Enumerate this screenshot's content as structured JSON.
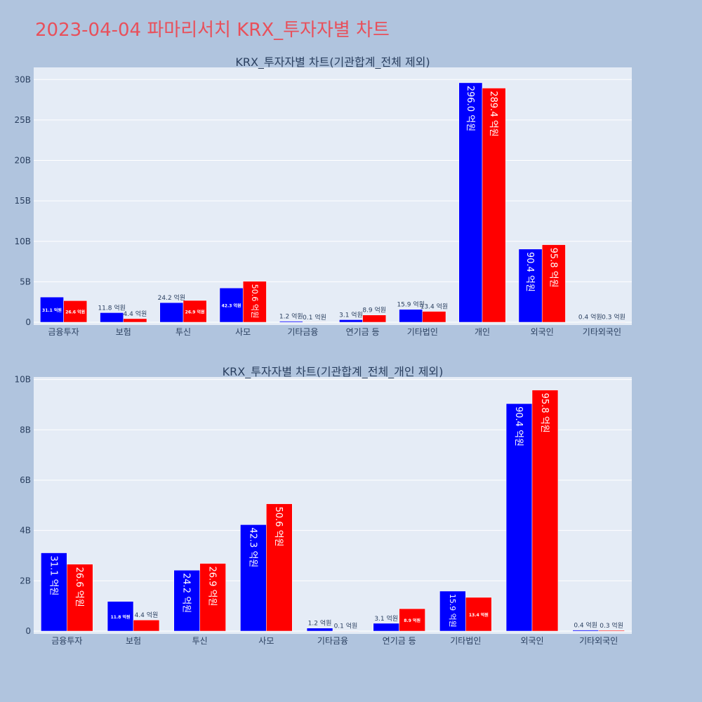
{
  "page": {
    "title": "2023-04-04 파마리서치 KRX_투자자별 차트"
  },
  "colors": {
    "buy": "#0000ff",
    "sell": "#ff0000",
    "background": "#b0c4de",
    "plot_bg": "#e5ecf6",
    "grid": "#ffffff",
    "text": "#2a3f5f"
  },
  "chart_data": [
    {
      "type": "bar",
      "title": "KRX_투자자별 차트(기관합계_전체 제외)",
      "categories": [
        "금융투자",
        "보험",
        "투신",
        "사모",
        "기타금융",
        "연기금 등",
        "기타법인",
        "개인",
        "외국인",
        "기타외국인"
      ],
      "series": [
        {
          "color": "#0000ff",
          "values": [
            3.11,
            1.18,
            2.42,
            4.23,
            0.12,
            0.31,
            1.59,
            29.6,
            9.04,
            0.04
          ],
          "labels": [
            "31.1 억원",
            "11.8 억원",
            "24.2 억원",
            "42.3 억원",
            "1.2 억원",
            "3.1 억원",
            "15.9 억원",
            "296.0 억원",
            "90.4 억원",
            "0.4 억원"
          ]
        },
        {
          "color": "#ff0000",
          "values": [
            2.66,
            0.44,
            2.69,
            5.06,
            0.01,
            0.89,
            1.34,
            28.94,
            9.58,
            0.03
          ],
          "labels": [
            "26.6 억원",
            "4.4 억원",
            "26.9 억원",
            "50.6 억원",
            "0.1 억원",
            "8.9 억원",
            "13.4 억원",
            "289.4 억원",
            "95.8 억원",
            "0.3 억원"
          ]
        }
      ],
      "ylim": [
        0,
        31.5
      ],
      "yticks": [
        0,
        5,
        10,
        15,
        20,
        25,
        30
      ],
      "ytick_labels": [
        "0",
        "5B",
        "10B",
        "15B",
        "20B",
        "25B",
        "30B"
      ],
      "grid": true
    },
    {
      "type": "bar",
      "title": "KRX_투자자별 차트(기관합계_전체_개인 제외)",
      "categories": [
        "금융투자",
        "보험",
        "투신",
        "사모",
        "기타금융",
        "연기금 등",
        "기타법인",
        "외국인",
        "기타외국인"
      ],
      "series": [
        {
          "color": "#0000ff",
          "values": [
            3.11,
            1.18,
            2.42,
            4.23,
            0.12,
            0.31,
            1.59,
            9.04,
            0.04
          ],
          "labels": [
            "31.1 억원",
            "11.8 억원",
            "24.2 억원",
            "42.3 억원",
            "1.2 억원",
            "3.1 억원",
            "15.9 억원",
            "90.4 억원",
            "0.4 억원"
          ]
        },
        {
          "color": "#ff0000",
          "values": [
            2.66,
            0.44,
            2.69,
            5.06,
            0.01,
            0.89,
            1.34,
            9.58,
            0.03
          ],
          "labels": [
            "26.6 억원",
            "4.4 억원",
            "26.9 억원",
            "50.6 억원",
            "0.1 억원",
            "8.9 억원",
            "13.4 억원",
            "95.8 억원",
            "0.3 억원"
          ]
        }
      ],
      "ylim": [
        0,
        10.1
      ],
      "yticks": [
        0,
        2,
        4,
        6,
        8,
        10
      ],
      "ytick_labels": [
        "0",
        "2B",
        "4B",
        "6B",
        "8B",
        "10B"
      ],
      "grid": true
    }
  ]
}
